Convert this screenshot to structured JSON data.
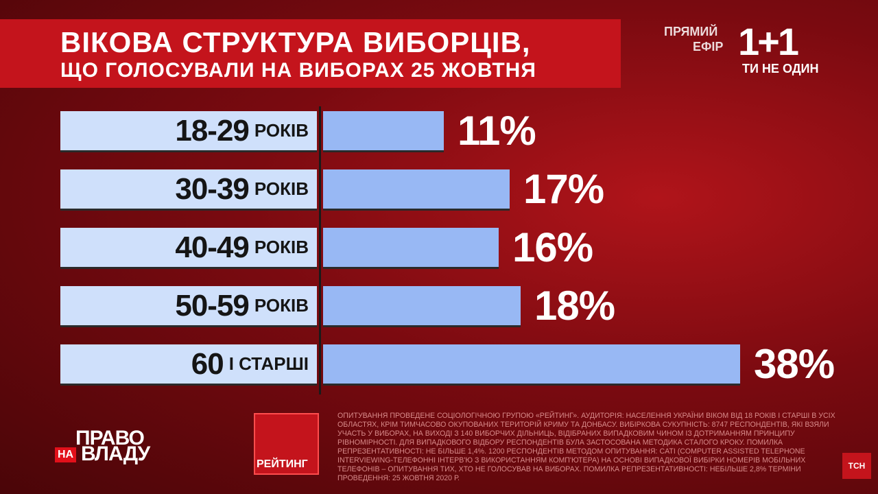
{
  "title": {
    "line1": "ВІКОВА СТРУКТУРА ВИБОРЦІВ,",
    "line2": "ЩО ГОЛОСУВАЛИ НА ВИБОРАХ 25 ЖОВТНЯ"
  },
  "channel": {
    "live_line1": "ПРЯМИЙ",
    "live_line2": "ЕФІР",
    "brand": "1+1",
    "slogan": "ТИ НЕ ОДИН"
  },
  "chart_data": {
    "type": "bar",
    "orientation": "horizontal",
    "title": "ВІКОВА СТРУКТУРА ВИБОРЦІВ, ЩО ГОЛОСУВАЛИ НА ВИБОРАХ 25 ЖОВТНЯ",
    "categories": [
      {
        "main": "18-29",
        "unit": "РОКІВ"
      },
      {
        "main": "30-39",
        "unit": "РОКІВ"
      },
      {
        "main": "40-49",
        "unit": "РОКІВ"
      },
      {
        "main": "50-59",
        "unit": "РОКІВ"
      },
      {
        "main": "60",
        "unit": "І СТАРШІ"
      }
    ],
    "values": [
      11,
      17,
      16,
      18,
      38
    ],
    "value_labels": [
      "11%",
      "17%",
      "16%",
      "18%",
      "38%"
    ],
    "colors": {
      "label_bg": "#cfe0fb",
      "bar": "#98b8f4"
    }
  },
  "source": {
    "rating_label": "РЕЙТИНГ",
    "notes": "Опитування проведене соціологічною групою «Рейтинг». Аудиторія: населення України віком від 18 років і старші в усіх областях, крім тимчасово окупованих територій Криму та Донбасу. Вибіркова сукупність: 8747 респондентів, які взяли участь у виборах, на виході з 140 виборчих дільниць, відібраних випадковим чином із дотриманням принципу рівномірності. Для випадкового відбору респондентів була застосована методика сталого кроку. Помилка репрезентативності: не більше 1,4%. 1200 респондентів методом опитування: CATI (Computer Assisted Telephone Interviewing-телефонні інтерв'ю з використанням комп'ютера) на основі випадкової вибірки номерів мобільних телефонів – опитування тих, хто не голосував на виборах. Помилка репрезентативності: небільше 2,8% Терміни проведення: 25 жовтня 2020 р."
  },
  "show": {
    "top": "ПРАВО",
    "na": "НА",
    "bottom": "ВЛАДУ"
  },
  "corner_logo": "ТСН"
}
